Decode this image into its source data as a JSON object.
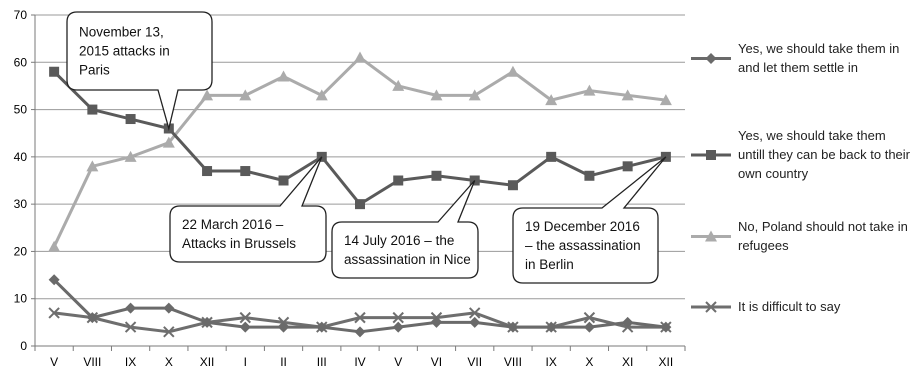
{
  "chart_data": {
    "type": "line",
    "categories": [
      "V",
      "VIII",
      "IX",
      "X",
      "XII",
      "I",
      "II",
      "III",
      "IV",
      "V",
      "VI",
      "VII",
      "VIII",
      "IX",
      "X",
      "XI",
      "XII"
    ],
    "ylim": [
      0,
      70
    ],
    "yticks": [
      0,
      10,
      20,
      30,
      40,
      50,
      60,
      70
    ],
    "grid": true,
    "legend_position": "right",
    "series": [
      {
        "name": "Yes, we should take them in and let them settle in",
        "legend_lines": [
          "Yes, we should take them in",
          "and let them settle in"
        ],
        "color": "#6a6a6a",
        "marker": "diamond",
        "values": [
          14,
          6,
          8,
          8,
          5,
          4,
          4,
          4,
          3,
          4,
          5,
          5,
          4,
          4,
          4,
          5,
          4
        ]
      },
      {
        "name": "Yes, we should take them untill they can be back to their own country",
        "legend_lines": [
          "Yes, we should take them",
          "untill they can be back to their",
          "own country"
        ],
        "color": "#5a5a5a",
        "marker": "square",
        "values": [
          58,
          50,
          48,
          46,
          37,
          37,
          35,
          40,
          30,
          35,
          36,
          35,
          34,
          40,
          36,
          38,
          40
        ]
      },
      {
        "name": "No, Poland should not take in refugees",
        "legend_lines": [
          "No, Poland should not take in",
          "refugees"
        ],
        "color": "#ababab",
        "marker": "triangle",
        "values": [
          21,
          38,
          40,
          43,
          53,
          53,
          57,
          53,
          61,
          55,
          53,
          53,
          58,
          52,
          54,
          53,
          52
        ]
      },
      {
        "name": "It is difficult to say",
        "legend_lines": [
          "It is difficult to say"
        ],
        "color": "#6e6e6e",
        "marker": "x",
        "values": [
          7,
          6,
          4,
          3,
          5,
          6,
          5,
          4,
          6,
          6,
          6,
          7,
          4,
          4,
          6,
          4,
          4
        ]
      }
    ],
    "annotations": [
      {
        "lines": [
          "November 13,",
          "2015 attacks in",
          "Paris"
        ],
        "category_index": 3,
        "series_index": 1
      },
      {
        "lines": [
          "22 March 2016 –",
          "Attacks in Brussels"
        ],
        "category_index": 7,
        "series_index": 1
      },
      {
        "lines": [
          "14 July 2016 – the",
          "assassination in Nice"
        ],
        "category_index": 11,
        "series_index": 1
      },
      {
        "lines": [
          "19 December 2016",
          "– the assassination",
          "in Berlin"
        ],
        "category_index": 16,
        "series_index": 1
      }
    ]
  }
}
